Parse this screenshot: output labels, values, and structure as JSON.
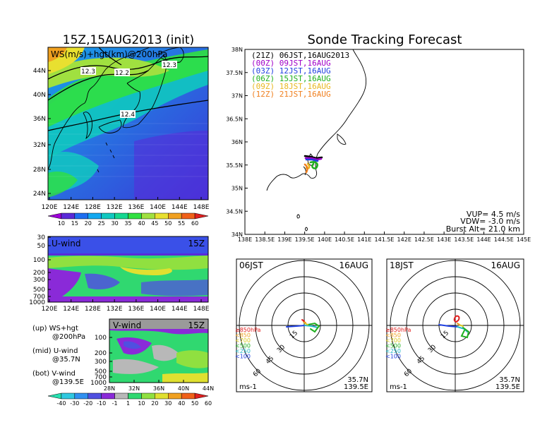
{
  "left_title": "15Z,15AUG2013 (init)",
  "right_title": "Sonde Tracking Forecast",
  "map": {
    "label": "WS(m/s)+hgt(km)@200hPa",
    "lat_ticks": [
      "44N",
      "40N",
      "36N",
      "32N",
      "28N",
      "24N"
    ],
    "lon_ticks": [
      "120E",
      "124E",
      "128E",
      "132E",
      "136E",
      "140E",
      "144E",
      "148E"
    ],
    "contours": [
      "12.3",
      "12.2",
      "12.3",
      "12.4"
    ],
    "cbar_ticks": [
      "10",
      "15",
      "20",
      "25",
      "30",
      "35",
      "40",
      "45",
      "50",
      "55",
      "60"
    ],
    "cbar_colors": [
      "#9e00d8",
      "#5a2ad8",
      "#1e6ef0",
      "#12a8f0",
      "#10c8c0",
      "#14d890",
      "#30e040",
      "#a0e040",
      "#e8e030",
      "#f0a020",
      "#f06018",
      "#e02020"
    ]
  },
  "uwind": {
    "label": "U-wind",
    "time": "15Z",
    "p_ticks": [
      "30",
      "50",
      "100",
      "200",
      "300",
      "500",
      "700",
      "1000"
    ],
    "lon_ticks": [
      "120E",
      "124E",
      "128E",
      "132E",
      "136E",
      "140E",
      "144E",
      "148E"
    ]
  },
  "vwind": {
    "label": "V-wind",
    "time": "15Z",
    "p_ticks": [
      "100",
      "200",
      "300",
      "500",
      "700",
      "1000"
    ],
    "lat_ticks": [
      "28N",
      "32N",
      "36N",
      "40N",
      "44N"
    ]
  },
  "notes": [
    {
      "a": "(up) WS+hgt",
      "b": "@200hPa"
    },
    {
      "a": "(mid) U-wind",
      "b": "@35.7N"
    },
    {
      "a": "(bot) V-wind",
      "b": "@139.5E"
    }
  ],
  "wind_cbar": {
    "ticks": [
      "-40",
      "-30",
      "-20",
      "-10",
      "-1",
      "1",
      "10",
      "20",
      "30",
      "40",
      "50",
      "60"
    ],
    "colors": [
      "#28e0b0",
      "#30c8e0",
      "#3090f0",
      "#5050e0",
      "#8a2ad8",
      "#b8b8b8",
      "#30d870",
      "#90e040",
      "#e0e030",
      "#f0a020",
      "#f06018",
      "#e02020"
    ]
  },
  "track": {
    "lat_ticks": [
      "38N",
      "37.5N",
      "37N",
      "36.5N",
      "36N",
      "35.5N",
      "35N",
      "34.5N",
      "34N"
    ],
    "lon_ticks": [
      "138E",
      "138.5E",
      "139E",
      "139.5E",
      "140E",
      "140.5E",
      "141E",
      "141.5E",
      "142E",
      "142.5E",
      "143E",
      "143.5E",
      "144E",
      "144.5E",
      "145E"
    ],
    "legend": [
      {
        "z": "(21Z)",
        "t": "06JST,16AUG2013",
        "color": "#000000"
      },
      {
        "z": "(00Z)",
        "t": "09JST,16AUG",
        "color": "#a000c8"
      },
      {
        "z": "(03Z)",
        "t": "12JST,16AUG",
        "color": "#2040e0"
      },
      {
        "z": "(06Z)",
        "t": "15JST,16AUG",
        "color": "#20b020"
      },
      {
        "z": "(09Z)",
        "t": "18JST,16AUG",
        "color": "#e8b820"
      },
      {
        "z": "(12Z)",
        "t": "21JST,16AUG",
        "color": "#f08020"
      }
    ],
    "info": [
      "VUP= 4.5 m/s",
      "VDW= -3.0 m/s",
      "Burst Alt= 21.0 km"
    ]
  },
  "hodo_left": {
    "time": "06JST",
    "date": "16AUG",
    "rings": [
      "15",
      "30",
      "45",
      "60"
    ],
    "unit": "ms-1",
    "lat": "35.7N",
    "lon": "139.5E"
  },
  "hodo_right": {
    "time": "18JST",
    "date": "16AUG",
    "rings": [
      "15",
      "30",
      "45",
      "60"
    ],
    "unit": "ms-1",
    "lat": "35.7N",
    "lon": "139.5E"
  },
  "hodo_levels": [
    {
      "label": "≥850hPa",
      "color": "#e02020"
    },
    {
      "label": "<850",
      "color": "#f0a020"
    },
    {
      "label": "<700",
      "color": "#d8c820"
    },
    {
      "label": "<500",
      "color": "#20b020"
    },
    {
      "label": "<250",
      "color": "#20b8c8"
    },
    {
      "label": "<100",
      "color": "#2040e0"
    }
  ]
}
